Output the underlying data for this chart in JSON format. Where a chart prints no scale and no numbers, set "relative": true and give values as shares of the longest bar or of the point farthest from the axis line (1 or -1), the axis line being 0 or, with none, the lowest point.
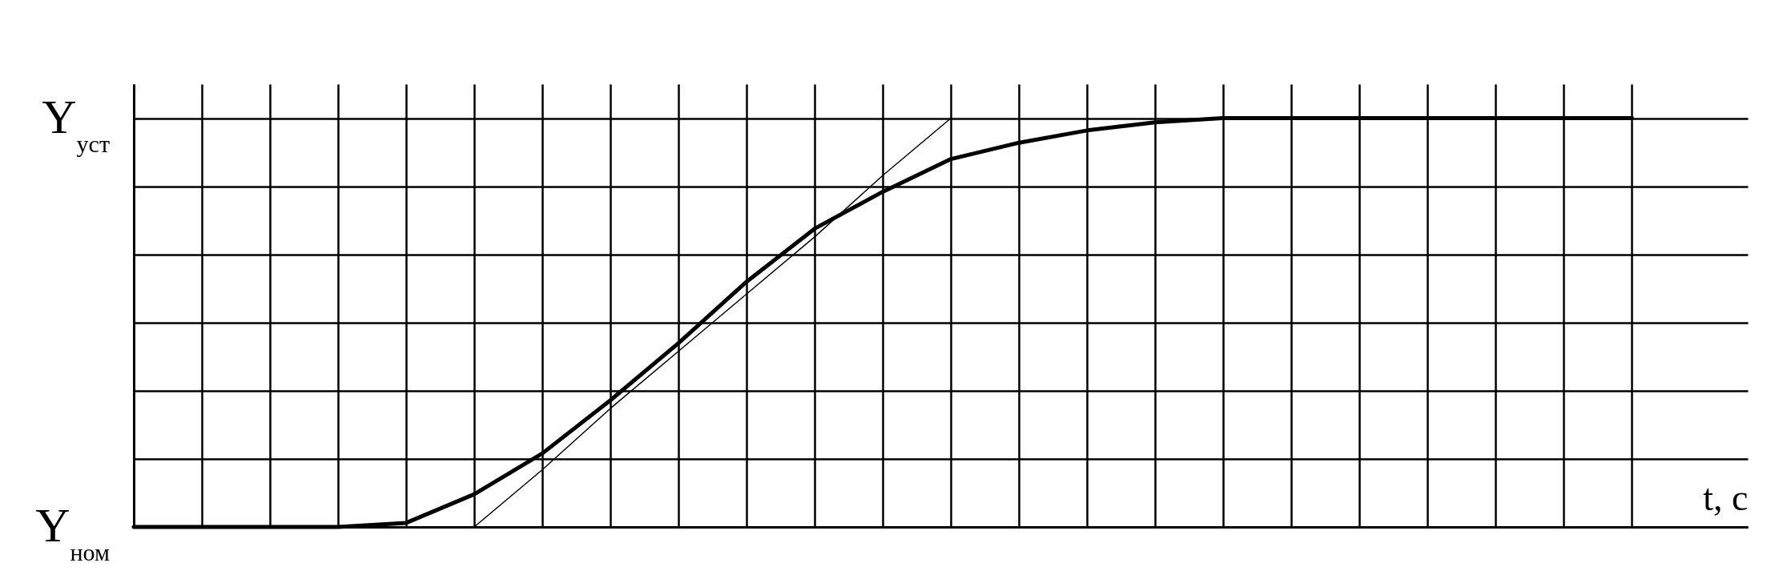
{
  "chart_data": {
    "type": "line",
    "xlabel": "t, с",
    "relative": true,
    "categories": [
      null,
      null,
      null,
      null,
      null,
      null,
      null,
      null,
      null,
      null,
      null,
      null,
      null,
      null,
      null,
      null,
      null,
      null,
      null,
      null,
      null,
      null,
      null
    ],
    "annotations": [
      "Y$_{уст}$",
      "Y$_{ном}$"
    ],
    "grid": true,
    "series": [
      {
        "color": "#000000",
        "values": [
          0,
          0,
          0,
          0,
          0.01,
          0.08,
          0.18,
          0.31,
          0.45,
          0.6,
          0.73,
          0.82,
          0.9,
          0.94,
          0.97,
          0.99,
          1,
          1,
          1,
          1,
          1,
          1,
          1
        ]
      },
      {
        "color": "#000000",
        "values": [
          null,
          null,
          null,
          null,
          null,
          0,
          0.14,
          0.29,
          0.43,
          0.57,
          0.71,
          0.86,
          1,
          null,
          null,
          null,
          null,
          null,
          null,
          null,
          null,
          null,
          null
        ]
      }
    ]
  }
}
